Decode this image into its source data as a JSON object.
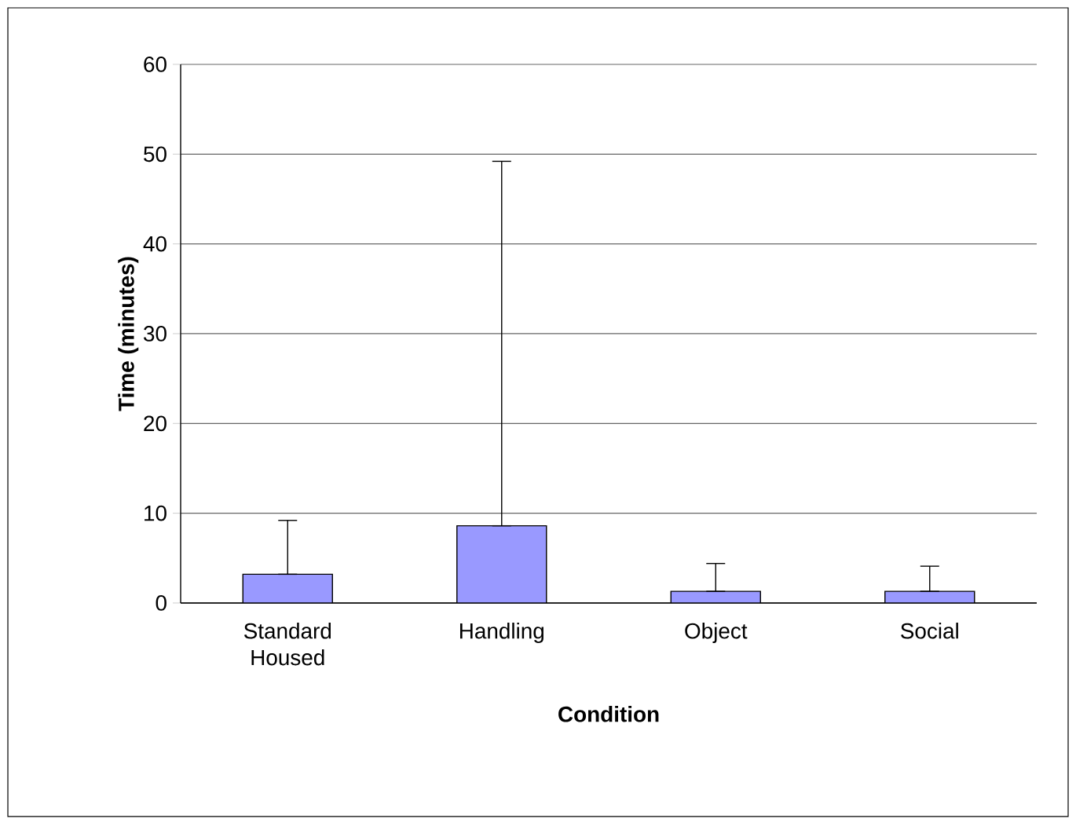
{
  "chart_data": {
    "type": "bar",
    "xlabel": "Condition",
    "ylabel": "Time (minutes)",
    "categories": [
      "Standard Housed",
      "Handling",
      "Object",
      "Social"
    ],
    "values": [
      3.2,
      8.6,
      1.3,
      1.3
    ],
    "errors": [
      [
        3.2,
        9.2
      ],
      [
        8.6,
        49.2
      ],
      [
        1.3,
        4.4
      ],
      [
        1.3,
        4.1
      ]
    ],
    "color": "#9999ff",
    "ylim": [
      0,
      60
    ],
    "yticks": [
      0,
      10,
      20,
      30,
      40,
      50,
      60
    ],
    "grid": "y"
  }
}
